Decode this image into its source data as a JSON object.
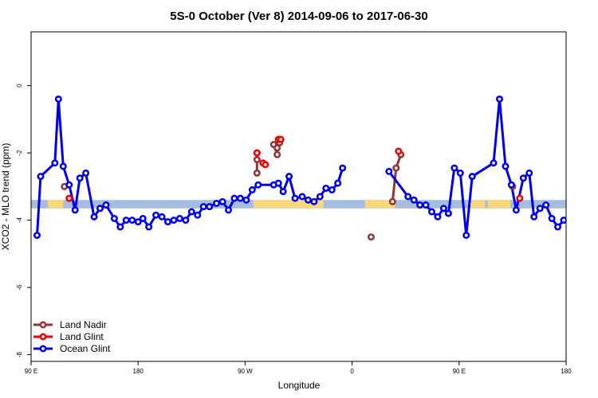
{
  "chart_data": {
    "type": "line",
    "title": "5S-0 October (Ver 8)   2014-09-06 to 2017-06-30",
    "xlabel": "Longitude",
    "ylabel": "XCO2 - MLO trend (ppm)",
    "xlim": [
      90,
      540
    ],
    "ylim": [
      -8.2,
      1.6
    ],
    "x_ticks": [
      {
        "value": 90,
        "label": "90 E"
      },
      {
        "value": 180,
        "label": "180"
      },
      {
        "value": 270,
        "label": "90 W"
      },
      {
        "value": 360,
        "label": "0"
      },
      {
        "value": 450,
        "label": "90 E"
      },
      {
        "value": 540,
        "label": "180"
      }
    ],
    "y_ticks": [
      {
        "value": 0,
        "label": "0"
      },
      {
        "value": -2,
        "label": "-2"
      },
      {
        "value": -4,
        "label": "-4"
      },
      {
        "value": -6,
        "label": "-6"
      },
      {
        "value": -8,
        "label": "-8"
      }
    ],
    "grid": false,
    "legend_position": "bottom-left",
    "band": {
      "y_range": [
        -3.4,
        -3.65
      ],
      "ocean_color": "#a4bde0",
      "land_color": "#f7d77f",
      "land_segments": [
        [
          104,
          117
        ],
        [
          277,
          336
        ],
        [
          371,
          396
        ],
        [
          459,
          472
        ],
        [
          474,
          493
        ]
      ]
    },
    "series": [
      {
        "name": "Land Nadir",
        "color": "#993333",
        "points": [
          [
            118,
            -3.0
          ],
          [
            280,
            -2.2
          ],
          [
            280,
            -2.6
          ],
          [
            280,
            -2.0
          ],
          [
            294,
            -1.75
          ],
          [
            297,
            -2.05
          ],
          [
            297,
            -1.85
          ],
          [
            299,
            -1.6
          ],
          [
            299,
            -1.7
          ],
          [
            376,
            -4.5
          ],
          [
            394,
            -3.45
          ],
          [
            397,
            -2.45
          ],
          [
            401,
            -2.05
          ],
          [
            495,
            -3.0
          ]
        ],
        "segments": [
          [
            1,
            3
          ],
          [
            4,
            8
          ],
          [
            10,
            12
          ]
        ]
      },
      {
        "name": "Land Glint",
        "color": "#ee0000",
        "points": [
          [
            122,
            -3.35
          ],
          [
            280,
            -2.0
          ],
          [
            285,
            -2.3
          ],
          [
            287,
            -2.35
          ],
          [
            298,
            -1.6
          ],
          [
            300,
            -1.6
          ],
          [
            399,
            -1.95
          ],
          [
            501,
            -3.35
          ]
        ],
        "segments": []
      },
      {
        "name": "Ocean Glint",
        "color": "#0000ee",
        "points": [
          [
            95,
            -4.45
          ],
          [
            98,
            -2.7
          ],
          [
            110,
            -2.3
          ],
          [
            113,
            -0.4
          ],
          [
            117,
            -2.4
          ],
          [
            122,
            -2.95
          ],
          [
            127,
            -3.7
          ],
          [
            131,
            -2.75
          ],
          [
            136,
            -2.6
          ],
          [
            143,
            -3.9
          ],
          [
            148,
            -3.65
          ],
          [
            153,
            -3.55
          ],
          [
            160,
            -3.95
          ],
          [
            165,
            -4.2
          ],
          [
            170,
            -4.0
          ],
          [
            175,
            -4.0
          ],
          [
            180,
            -4.05
          ],
          [
            184,
            -3.95
          ],
          [
            189,
            -4.2
          ],
          [
            195,
            -3.85
          ],
          [
            200,
            -3.9
          ],
          [
            205,
            -4.05
          ],
          [
            210,
            -4.0
          ],
          [
            215,
            -3.95
          ],
          [
            220,
            -4.0
          ],
          [
            225,
            -3.75
          ],
          [
            230,
            -3.85
          ],
          [
            235,
            -3.6
          ],
          [
            240,
            -3.6
          ],
          [
            246,
            -3.5
          ],
          [
            251,
            -3.45
          ],
          [
            256,
            -3.7
          ],
          [
            261,
            -3.35
          ],
          [
            266,
            -3.35
          ],
          [
            271,
            -3.4
          ],
          [
            276,
            -3.1
          ],
          [
            281,
            -2.95
          ],
          [
            294,
            -2.95
          ],
          [
            298,
            -2.9
          ],
          [
            302,
            -3.15
          ],
          [
            307,
            -2.7
          ],
          [
            312,
            -3.35
          ],
          [
            318,
            -3.3
          ],
          [
            323,
            -3.4
          ],
          [
            328,
            -3.45
          ],
          [
            333,
            -3.3
          ],
          [
            338,
            -3.05
          ],
          [
            343,
            -3.1
          ],
          [
            348,
            -2.9
          ],
          [
            352,
            -2.45
          ],
          [
            391,
            -2.55
          ],
          [
            407,
            -3.3
          ],
          [
            412,
            -3.4
          ],
          [
            417,
            -3.55
          ],
          [
            422,
            -3.55
          ],
          [
            427,
            -3.75
          ],
          [
            432,
            -3.9
          ],
          [
            437,
            -3.65
          ],
          [
            441,
            -3.8
          ],
          [
            446,
            -2.45
          ],
          [
            451,
            -2.6
          ],
          [
            456,
            -4.45
          ],
          [
            461,
            -2.7
          ],
          [
            479,
            -2.3
          ],
          [
            484,
            -0.4
          ],
          [
            489,
            -2.4
          ],
          [
            494,
            -2.95
          ],
          [
            498,
            -3.7
          ],
          [
            504,
            -2.75
          ],
          [
            509,
            -2.6
          ],
          [
            513,
            -3.9
          ],
          [
            518,
            -3.65
          ],
          [
            523,
            -3.55
          ],
          [
            528,
            -3.95
          ],
          [
            533,
            -4.2
          ],
          [
            538,
            -4.0
          ],
          [
            543,
            -4.0
          ],
          [
            548,
            -4.05
          ]
        ],
        "segments": [
          [
            0,
            49
          ],
          [
            50,
            77
          ]
        ]
      }
    ]
  }
}
